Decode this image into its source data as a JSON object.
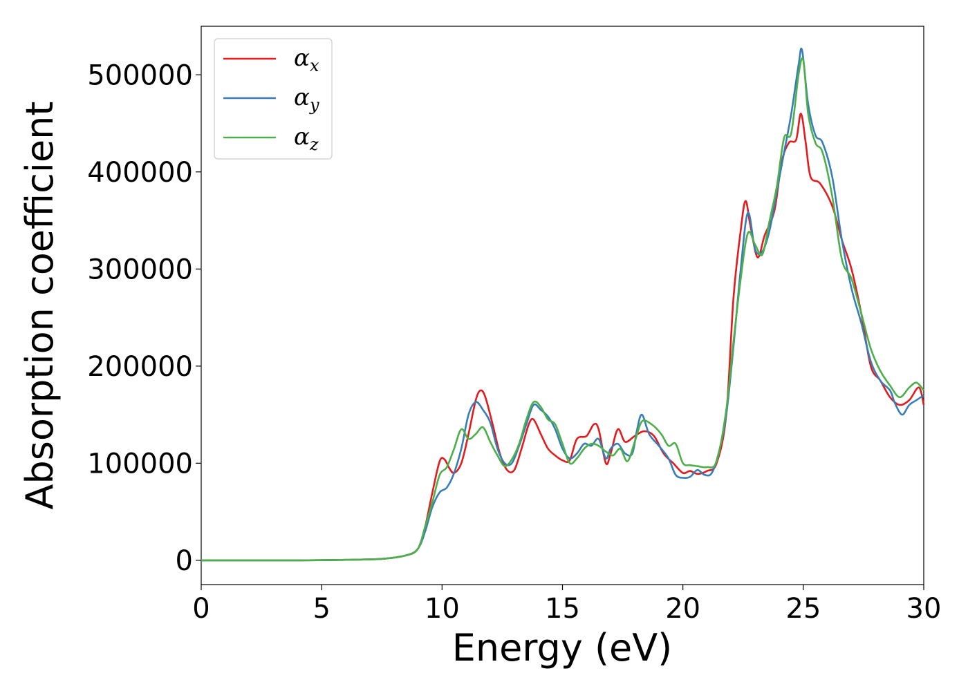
{
  "chart_data": {
    "type": "line",
    "title": "",
    "xlabel": "Energy (eV)",
    "ylabel": "Absorption coefficient",
    "xlim": [
      0,
      30
    ],
    "ylim": [
      -25000,
      550000
    ],
    "xticks": [
      0,
      5,
      10,
      15,
      20,
      25,
      30
    ],
    "xtick_labels": [
      "0",
      "5",
      "10",
      "15",
      "20",
      "25",
      "30"
    ],
    "yticks": [
      0,
      100000,
      200000,
      300000,
      400000,
      500000
    ],
    "ytick_labels": [
      "0",
      "100000",
      "200000",
      "300000",
      "400000",
      "500000"
    ],
    "grid": false,
    "legend_position": "top-left",
    "series": [
      {
        "name": "α",
        "subscript": "x",
        "color": "#e41a1c",
        "points": [
          [
            0,
            0
          ],
          [
            4,
            0
          ],
          [
            6,
            500
          ],
          [
            7.5,
            1500
          ],
          [
            8.5,
            5000
          ],
          [
            9,
            12000
          ],
          [
            9.3,
            35000
          ],
          [
            9.6,
            70000
          ],
          [
            9.9,
            102000
          ],
          [
            10.1,
            104000
          ],
          [
            10.3,
            95000
          ],
          [
            10.5,
            90000
          ],
          [
            10.8,
            100000
          ],
          [
            11.1,
            130000
          ],
          [
            11.4,
            165000
          ],
          [
            11.6,
            175000
          ],
          [
            11.8,
            168000
          ],
          [
            12.1,
            140000
          ],
          [
            12.4,
            110000
          ],
          [
            12.7,
            93000
          ],
          [
            13,
            93000
          ],
          [
            13.3,
            115000
          ],
          [
            13.6,
            140000
          ],
          [
            13.8,
            145000
          ],
          [
            14.1,
            130000
          ],
          [
            14.4,
            115000
          ],
          [
            14.7,
            108000
          ],
          [
            15,
            103000
          ],
          [
            15.3,
            103000
          ],
          [
            15.6,
            125000
          ],
          [
            16,
            128000
          ],
          [
            16.3,
            140000
          ],
          [
            16.5,
            135000
          ],
          [
            16.8,
            100000
          ],
          [
            17,
            110000
          ],
          [
            17.3,
            135000
          ],
          [
            17.6,
            122000
          ],
          [
            18,
            128000
          ],
          [
            18.4,
            133000
          ],
          [
            18.8,
            128000
          ],
          [
            19.2,
            110000
          ],
          [
            19.6,
            100000
          ],
          [
            20,
            90000
          ],
          [
            20.3,
            92000
          ],
          [
            20.6,
            89000
          ],
          [
            21,
            92000
          ],
          [
            21.4,
            100000
          ],
          [
            21.8,
            150000
          ],
          [
            22.1,
            270000
          ],
          [
            22.4,
            340000
          ],
          [
            22.6,
            370000
          ],
          [
            22.8,
            345000
          ],
          [
            23.1,
            312000
          ],
          [
            23.4,
            335000
          ],
          [
            23.8,
            360000
          ],
          [
            24.1,
            410000
          ],
          [
            24.4,
            430000
          ],
          [
            24.7,
            433000
          ],
          [
            24.9,
            460000
          ],
          [
            25.1,
            430000
          ],
          [
            25.3,
            395000
          ],
          [
            25.7,
            388000
          ],
          [
            26.2,
            365000
          ],
          [
            26.6,
            330000
          ],
          [
            27,
            300000
          ],
          [
            27.4,
            255000
          ],
          [
            27.8,
            200000
          ],
          [
            28.2,
            185000
          ],
          [
            28.6,
            168000
          ],
          [
            29,
            160000
          ],
          [
            29.4,
            165000
          ],
          [
            29.8,
            178000
          ],
          [
            30,
            160000
          ]
        ]
      },
      {
        "name": "α",
        "subscript": "y",
        "color": "#377eb8",
        "points": [
          [
            0,
            0
          ],
          [
            4,
            0
          ],
          [
            6,
            500
          ],
          [
            7.5,
            1500
          ],
          [
            8.5,
            5000
          ],
          [
            9,
            12000
          ],
          [
            9.3,
            30000
          ],
          [
            9.6,
            55000
          ],
          [
            9.9,
            70000
          ],
          [
            10.2,
            75000
          ],
          [
            10.5,
            90000
          ],
          [
            10.8,
            115000
          ],
          [
            11.1,
            150000
          ],
          [
            11.4,
            163000
          ],
          [
            11.7,
            155000
          ],
          [
            12,
            142000
          ],
          [
            12.3,
            115000
          ],
          [
            12.6,
            100000
          ],
          [
            12.9,
            100000
          ],
          [
            13.2,
            118000
          ],
          [
            13.5,
            140000
          ],
          [
            13.8,
            160000
          ],
          [
            14.1,
            155000
          ],
          [
            14.4,
            148000
          ],
          [
            14.7,
            135000
          ],
          [
            15,
            115000
          ],
          [
            15.3,
            105000
          ],
          [
            15.6,
            110000
          ],
          [
            15.9,
            120000
          ],
          [
            16.2,
            118000
          ],
          [
            16.5,
            125000
          ],
          [
            16.8,
            105000
          ],
          [
            17,
            115000
          ],
          [
            17.3,
            120000
          ],
          [
            17.6,
            110000
          ],
          [
            17.9,
            110000
          ],
          [
            18.1,
            135000
          ],
          [
            18.3,
            150000
          ],
          [
            18.6,
            130000
          ],
          [
            19,
            118000
          ],
          [
            19.4,
            105000
          ],
          [
            19.7,
            88000
          ],
          [
            20,
            85000
          ],
          [
            20.3,
            86000
          ],
          [
            20.6,
            93000
          ],
          [
            20.9,
            88000
          ],
          [
            21.2,
            90000
          ],
          [
            21.5,
            112000
          ],
          [
            21.8,
            150000
          ],
          [
            22.1,
            220000
          ],
          [
            22.4,
            300000
          ],
          [
            22.7,
            358000
          ],
          [
            23,
            320000
          ],
          [
            23.3,
            318000
          ],
          [
            23.6,
            340000
          ],
          [
            23.9,
            380000
          ],
          [
            24.2,
            420000
          ],
          [
            24.5,
            460000
          ],
          [
            24.8,
            510000
          ],
          [
            24.95,
            525000
          ],
          [
            25.2,
            470000
          ],
          [
            25.5,
            438000
          ],
          [
            25.8,
            430000
          ],
          [
            26.2,
            395000
          ],
          [
            26.6,
            330000
          ],
          [
            27,
            280000
          ],
          [
            27.4,
            245000
          ],
          [
            27.8,
            205000
          ],
          [
            28.2,
            185000
          ],
          [
            28.6,
            175000
          ],
          [
            28.8,
            162000
          ],
          [
            29.1,
            150000
          ],
          [
            29.4,
            160000
          ],
          [
            29.7,
            165000
          ],
          [
            30,
            170000
          ]
        ]
      },
      {
        "name": "α",
        "subscript": "z",
        "color": "#4daf4a",
        "points": [
          [
            0,
            0
          ],
          [
            4,
            0
          ],
          [
            6,
            500
          ],
          [
            7.5,
            1500
          ],
          [
            8.5,
            5000
          ],
          [
            9,
            12000
          ],
          [
            9.3,
            35000
          ],
          [
            9.6,
            60000
          ],
          [
            9.9,
            88000
          ],
          [
            10.2,
            96000
          ],
          [
            10.5,
            115000
          ],
          [
            10.8,
            135000
          ],
          [
            11.1,
            125000
          ],
          [
            11.4,
            130000
          ],
          [
            11.7,
            137000
          ],
          [
            12,
            122000
          ],
          [
            12.3,
            108000
          ],
          [
            12.6,
            97000
          ],
          [
            12.9,
            104000
          ],
          [
            13.2,
            120000
          ],
          [
            13.5,
            145000
          ],
          [
            13.8,
            163000
          ],
          [
            14.1,
            158000
          ],
          [
            14.4,
            145000
          ],
          [
            14.7,
            140000
          ],
          [
            15,
            120000
          ],
          [
            15.3,
            100000
          ],
          [
            15.6,
            105000
          ],
          [
            15.9,
            115000
          ],
          [
            16.2,
            120000
          ],
          [
            16.5,
            118000
          ],
          [
            16.8,
            112000
          ],
          [
            17.1,
            108000
          ],
          [
            17.4,
            115000
          ],
          [
            17.7,
            102000
          ],
          [
            18,
            122000
          ],
          [
            18.3,
            143000
          ],
          [
            18.7,
            140000
          ],
          [
            19.1,
            130000
          ],
          [
            19.4,
            118000
          ],
          [
            19.7,
            120000
          ],
          [
            20,
            100000
          ],
          [
            20.3,
            98000
          ],
          [
            20.6,
            97000
          ],
          [
            21,
            96000
          ],
          [
            21.4,
            102000
          ],
          [
            21.8,
            155000
          ],
          [
            22.1,
            225000
          ],
          [
            22.4,
            290000
          ],
          [
            22.7,
            337000
          ],
          [
            23,
            325000
          ],
          [
            23.3,
            315000
          ],
          [
            23.6,
            350000
          ],
          [
            23.9,
            385000
          ],
          [
            24.2,
            435000
          ],
          [
            24.5,
            440000
          ],
          [
            24.8,
            500000
          ],
          [
            25,
            515000
          ],
          [
            25.2,
            460000
          ],
          [
            25.5,
            430000
          ],
          [
            25.8,
            420000
          ],
          [
            26.2,
            375000
          ],
          [
            26.6,
            310000
          ],
          [
            27,
            290000
          ],
          [
            27.4,
            255000
          ],
          [
            27.8,
            218000
          ],
          [
            28.2,
            195000
          ],
          [
            28.6,
            180000
          ],
          [
            29,
            168000
          ],
          [
            29.4,
            178000
          ],
          [
            29.7,
            183000
          ],
          [
            30,
            175000
          ]
        ]
      }
    ]
  }
}
